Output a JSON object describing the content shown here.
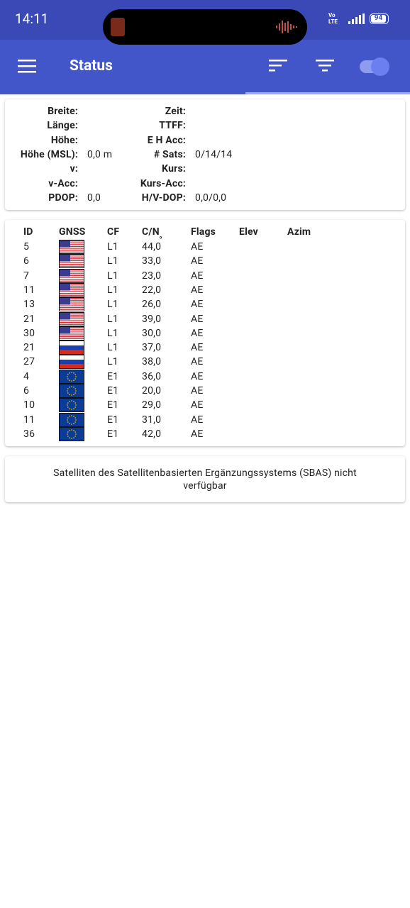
{
  "status_bar": {
    "time": "14:11",
    "network_top": "Vo",
    "network_bottom": "LTE",
    "battery": "94"
  },
  "app_bar": {
    "title": "Status"
  },
  "location": {
    "left": [
      {
        "label": "Breite:"
      },
      {
        "label": "Länge:"
      },
      {
        "label": "Höhe:"
      },
      {
        "label": "Höhe (MSL):",
        "value": "0,0 m"
      },
      {
        "label": "v:"
      },
      {
        "label": "v-Acc:"
      },
      {
        "label": "PDOP:",
        "value": "0,0"
      }
    ],
    "right": [
      {
        "label": "Zeit:"
      },
      {
        "label": "TTFF:"
      },
      {
        "label": "E H Acc:"
      },
      {
        "label": "# Sats:",
        "value": "0/14/14"
      },
      {
        "label": "Kurs:"
      },
      {
        "label": "Kurs-Acc:"
      },
      {
        "label": "H/V-DOP:",
        "value": "0,0/0,0"
      }
    ]
  },
  "satellites": {
    "headers": [
      "ID",
      "GNSS",
      "CF",
      "C/N₀",
      "Flags",
      "Elev",
      "Azim"
    ],
    "rows": [
      {
        "id": "5",
        "cf": "L1",
        "cn0": "44,0",
        "flags": "AE"
      },
      {
        "id": "6",
        "cf": "L1",
        "cn0": "33,0",
        "flags": "AE"
      },
      {
        "id": "7",
        "cf": "L1",
        "cn0": "23,0",
        "flags": "AE"
      },
      {
        "id": "11",
        "cf": "L1",
        "cn0": "22,0",
        "flags": "AE"
      },
      {
        "id": "13",
        "cf": "L1",
        "cn0": "26,0",
        "flags": "AE"
      },
      {
        "id": "21",
        "cf": "L1",
        "cn0": "39,0",
        "flags": "AE"
      },
      {
        "id": "30",
        "cf": "L1",
        "cn0": "30,0",
        "flags": "AE"
      },
      {
        "id": "21",
        "cf": "L1",
        "cn0": "37,0",
        "flags": "AE"
      },
      {
        "id": "27",
        "cf": "L1",
        "cn0": "38,0",
        "flags": "AE"
      },
      {
        "id": "4",
        "cf": "E1",
        "cn0": "36,0",
        "flags": "AE"
      },
      {
        "id": "6",
        "cf": "E1",
        "cn0": "20,0",
        "flags": "AE"
      },
      {
        "id": "10",
        "cf": "E1",
        "cn0": "29,0",
        "flags": "AE"
      },
      {
        "id": "11",
        "cf": "E1",
        "cn0": "31,0",
        "flags": "AE"
      },
      {
        "id": "36",
        "cf": "E1",
        "cn0": "42,0",
        "flags": "AE"
      }
    ]
  },
  "sbas_message": "Satelliten des Satellitenbasierten Ergänzungssystems (SBAS) nicht verfügbar"
}
